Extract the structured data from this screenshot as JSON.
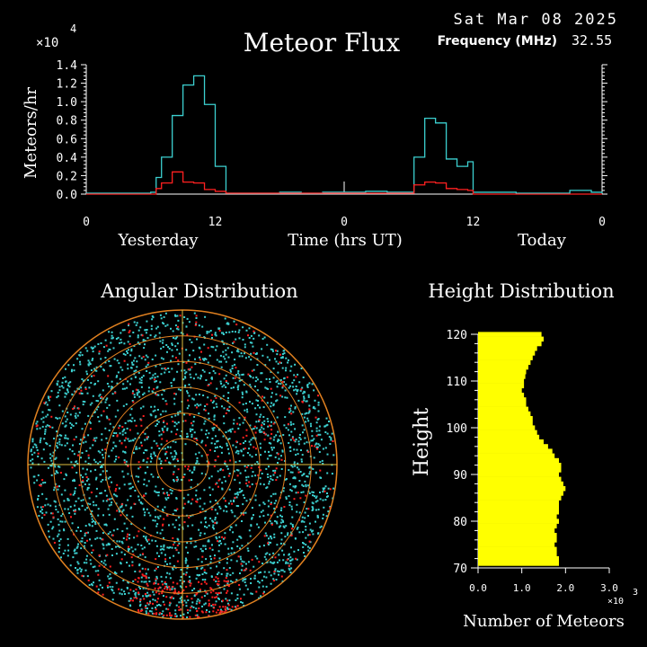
{
  "header": {
    "date": "Sat Mar 08 2025",
    "title": "Meteor Flux",
    "frequency_label": "Frequency (MHz)",
    "frequency_value": "32.55",
    "exponent_prefix": "×10",
    "exponent_power": "4"
  },
  "chart_data": [
    {
      "type": "line",
      "title": "Meteor Flux",
      "ylabel": "Meteors/hr",
      "xlabel": "Time (hrs UT)",
      "ylim": [
        0,
        1.4
      ],
      "y_scale_note": "×10^4",
      "y_ticks": [
        "0.0",
        "0.2",
        "0.4",
        "0.6",
        "0.8",
        "1.0",
        "1.2",
        "1.4"
      ],
      "x_ticks": [
        "0",
        "12",
        "0",
        "12",
        "0"
      ],
      "day_labels": [
        "Yesterday",
        "Today"
      ],
      "x_hours": [
        0,
        6,
        7,
        8,
        9,
        10,
        11,
        12,
        24,
        30,
        31,
        32,
        33,
        34,
        35,
        36,
        48
      ],
      "series": [
        {
          "color": "#3cd0d0",
          "points": [
            [
              0,
              0.01
            ],
            [
              2,
              0.01
            ],
            [
              4,
              0.01
            ],
            [
              6,
              0.02
            ],
            [
              6.5,
              0.18
            ],
            [
              7,
              0.4
            ],
            [
              8,
              0.85
            ],
            [
              9,
              1.18
            ],
            [
              10,
              1.28
            ],
            [
              11,
              0.97
            ],
            [
              12,
              0.3
            ],
            [
              13,
              0.01
            ],
            [
              16,
              0.01
            ],
            [
              18,
              0.02
            ],
            [
              20,
              0.01
            ],
            [
              22,
              0.02
            ],
            [
              24,
              0.02
            ],
            [
              26,
              0.03
            ],
            [
              28,
              0.02
            ],
            [
              30,
              0.02
            ],
            [
              30.5,
              0.4
            ],
            [
              31.5,
              0.82
            ],
            [
              32.5,
              0.77
            ],
            [
              33.5,
              0.38
            ],
            [
              34.5,
              0.3
            ],
            [
              35.5,
              0.35
            ],
            [
              36,
              0.02
            ],
            [
              40,
              0.01
            ],
            [
              44,
              0.01
            ],
            [
              45,
              0.04
            ],
            [
              47,
              0.02
            ],
            [
              48,
              0.01
            ]
          ]
        },
        {
          "color": "#ff2020",
          "points": [
            [
              0,
              0.0
            ],
            [
              6,
              0.0
            ],
            [
              6.5,
              0.06
            ],
            [
              7,
              0.12
            ],
            [
              8,
              0.24
            ],
            [
              9,
              0.13
            ],
            [
              10,
              0.12
            ],
            [
              11,
              0.05
            ],
            [
              12,
              0.03
            ],
            [
              13,
              0.01
            ],
            [
              24,
              0.01
            ],
            [
              30,
              0.01
            ],
            [
              30.5,
              0.1
            ],
            [
              31.5,
              0.13
            ],
            [
              32.5,
              0.12
            ],
            [
              33.5,
              0.06
            ],
            [
              34.5,
              0.05
            ],
            [
              35.5,
              0.04
            ],
            [
              36,
              0.0
            ],
            [
              48,
              0.0
            ]
          ]
        }
      ]
    },
    {
      "type": "scatter",
      "title": "Angular Distribution",
      "ring_count": 6,
      "colors": {
        "dots": "#3cd0d0",
        "red_dots": "#ff2020",
        "rings": "#e08020",
        "axes": "#e0c040"
      }
    },
    {
      "type": "bar",
      "title": "Height Distribution",
      "ylabel": "Height",
      "xlabel": "Number of Meteors",
      "x_scale_note": "×10^3",
      "x_ticks": [
        "0.0",
        "1.0",
        "2.0",
        "3.0"
      ],
      "xlim": [
        0,
        3.0
      ],
      "y_ticks": [
        "70",
        "80",
        "90",
        "100",
        "110",
        "120"
      ],
      "ylim": [
        70,
        120
      ],
      "color": "#ffff00",
      "heights": [
        120,
        119,
        118,
        117,
        116,
        115,
        114,
        113,
        112,
        111,
        110,
        109,
        108,
        107,
        106,
        105,
        104,
        103,
        102,
        101,
        100,
        99,
        98,
        97,
        96,
        95,
        94,
        93,
        92,
        91,
        90,
        89,
        88,
        87,
        86,
        85,
        84,
        83,
        82,
        81,
        80,
        79,
        78,
        77,
        76,
        75,
        74,
        73,
        72,
        71
      ],
      "counts": [
        1.45,
        1.5,
        1.45,
        1.35,
        1.3,
        1.25,
        1.2,
        1.15,
        1.1,
        1.08,
        1.05,
        1.05,
        1.0,
        1.05,
        1.1,
        1.1,
        1.15,
        1.2,
        1.25,
        1.25,
        1.3,
        1.35,
        1.4,
        1.5,
        1.6,
        1.7,
        1.75,
        1.85,
        1.9,
        1.9,
        1.85,
        1.9,
        1.95,
        2.0,
        1.95,
        1.9,
        1.85,
        1.85,
        1.85,
        1.8,
        1.85,
        1.8,
        1.75,
        1.8,
        1.8,
        1.75,
        1.8,
        1.8,
        1.85,
        1.85
      ]
    }
  ]
}
